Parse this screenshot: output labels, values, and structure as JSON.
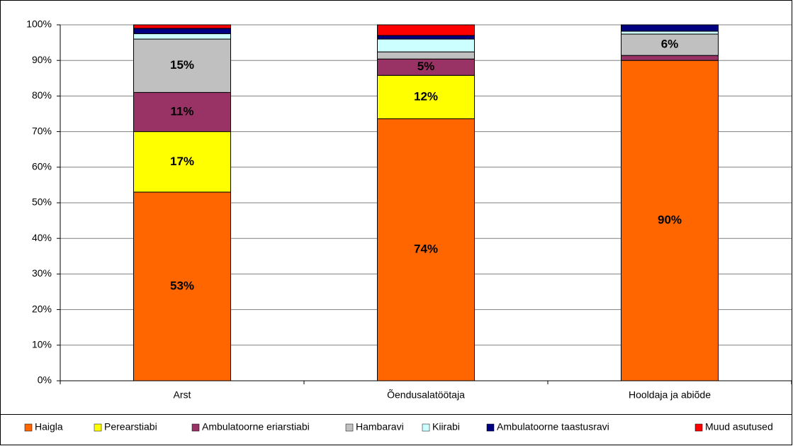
{
  "chart_data": {
    "type": "stacked_bar",
    "categories": [
      "Arst",
      "Õendusalatöötaja",
      "Hooldaja ja abiõde"
    ],
    "series": [
      {
        "name": "Haigla",
        "color": "#ff6600",
        "values": [
          53,
          73.6,
          90
        ],
        "value_labels": [
          "53%",
          "74%",
          "90%"
        ]
      },
      {
        "name": "Perearstiabi",
        "color": "#ffff00",
        "values": [
          17,
          12.2,
          0
        ],
        "value_labels": [
          "17%",
          "12%",
          null
        ]
      },
      {
        "name": "Ambulatoorne eriarstiabi",
        "color": "#993366",
        "values": [
          11,
          4.6,
          1.4
        ],
        "value_labels": [
          "11%",
          "5%",
          null
        ]
      },
      {
        "name": "Hambaravi",
        "color": "#c0c0c0",
        "values": [
          15,
          2,
          6
        ],
        "value_labels": [
          "15%",
          null,
          "6%"
        ]
      },
      {
        "name": "Kiirabi",
        "color": "#ccffff",
        "values": [
          1.5,
          3.6,
          0.8
        ]
      },
      {
        "name": "Ambulatoorne taastusravi",
        "color": "#000080",
        "values": [
          1.5,
          1,
          1.8
        ]
      },
      {
        "name": "Muud asutused",
        "color": "#ff0000",
        "values": [
          1,
          3,
          0
        ]
      }
    ],
    "ylim": [
      0,
      100
    ],
    "yticks": [
      {
        "value": 0,
        "label": "0%"
      },
      {
        "value": 10,
        "label": "10%"
      },
      {
        "value": 20,
        "label": "20%"
      },
      {
        "value": 30,
        "label": "30%"
      },
      {
        "value": 40,
        "label": "40%"
      },
      {
        "value": 50,
        "label": "50%"
      },
      {
        "value": 60,
        "label": "60%"
      },
      {
        "value": 70,
        "label": "70%"
      },
      {
        "value": 80,
        "label": "80%"
      },
      {
        "value": 90,
        "label": "90%"
      },
      {
        "value": 100,
        "label": "100%"
      }
    ],
    "grid": true,
    "legend": "bottom"
  }
}
